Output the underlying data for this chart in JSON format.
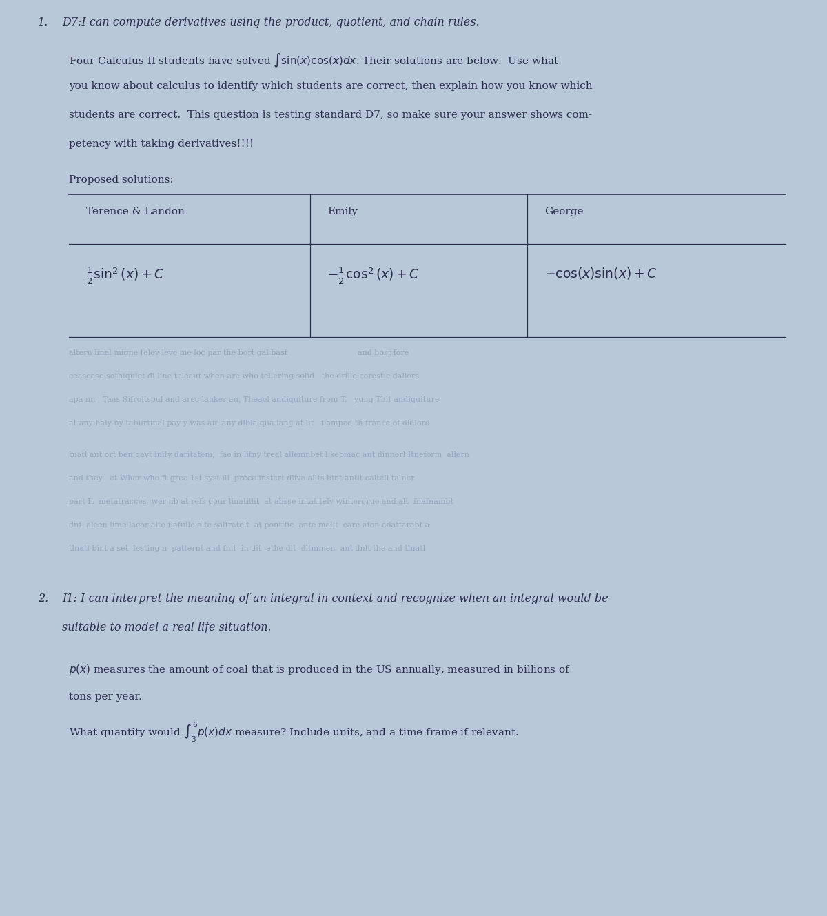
{
  "bg_color": "#b8c8d8",
  "text_color": "#2d2d4e",
  "faint_color": "#8090aa",
  "line_color": "#2d2d4e",
  "title1_num": "1.",
  "title1_text": "D7:I can compute derivatives using the product, quotient, and chain rules.",
  "para1_l1": "Four Calculus II students have solved",
  "para1_l1b": ". Their solutions are below.  Use what",
  "para1_l2": "you know about calculus to identify which students are correct, then explain how you know which",
  "para1_l3": "students are correct.  This question is testing standard D7, so make sure your answer shows com-",
  "para1_l4": "petency with taking derivatives!!!!",
  "proposed": "Proposed solutions:",
  "col1": "Terence & Landon",
  "col2": "Emily",
  "col3": "George",
  "f1": "$\\frac{1}{2}\\sin^2(x) + C$",
  "f2": "$-\\frac{1}{2}\\cos^2(x) + C$",
  "f3": "$-\\cos(x)\\sin(x) + C$",
  "title2_num": "2.",
  "title2_text": "I1: I can interpret the meaning of an integral in context and recognize when an integral would be",
  "title2_text2": "suitable to model a real life situation.",
  "para2_l1": "$p(x)$ measures the amount of coal that is produced in the US annually, measured in billions of",
  "para2_l2": "tons per year.",
  "para2_q": "What quantity would $\\int_3^6 p(x)dx$ measure? Include units, and a time frame if relevant.",
  "faint_lines_top": [
    "altern linal migne telev leve me loc par the bort gal bast                             and bost fore",
    "ceasease sothiquiet di line teleaut when are who tellering solid   the drille corestic dallors",
    "apa nn   Taas Sifroitsoul and arec lanker an, Theaol andiquiture from T.   yung Thit andiquiture",
    "at any haly ny taburtinal pay y was ain any dlbla qua lang at lit   flamped th france of dldlord"
  ],
  "faint_lines_mid": [
    "tnatl ant ort ben qayt inity daritatem,  fae in litny treal allemnbet l keomac ant dinnerl Itneform  allern",
    "and they   et Wher who ft gree 1st syst ill  prece instert dlive allts bint antlt caltell talner",
    "part It  metatracces  wer nb at refs gour linatillit  at absse intatitely wintergrue and alt  fnafnambt",
    "dnf  aleen lime lacor alte flafulle alte salfratelt  at pontific  ante mallt  care afon adatfarabt a",
    "tlnatl bint a set  lesting n  patternt and fnit  in dit  ethe dlt  dltmmen  ant dnlt the and tlnatl"
  ]
}
